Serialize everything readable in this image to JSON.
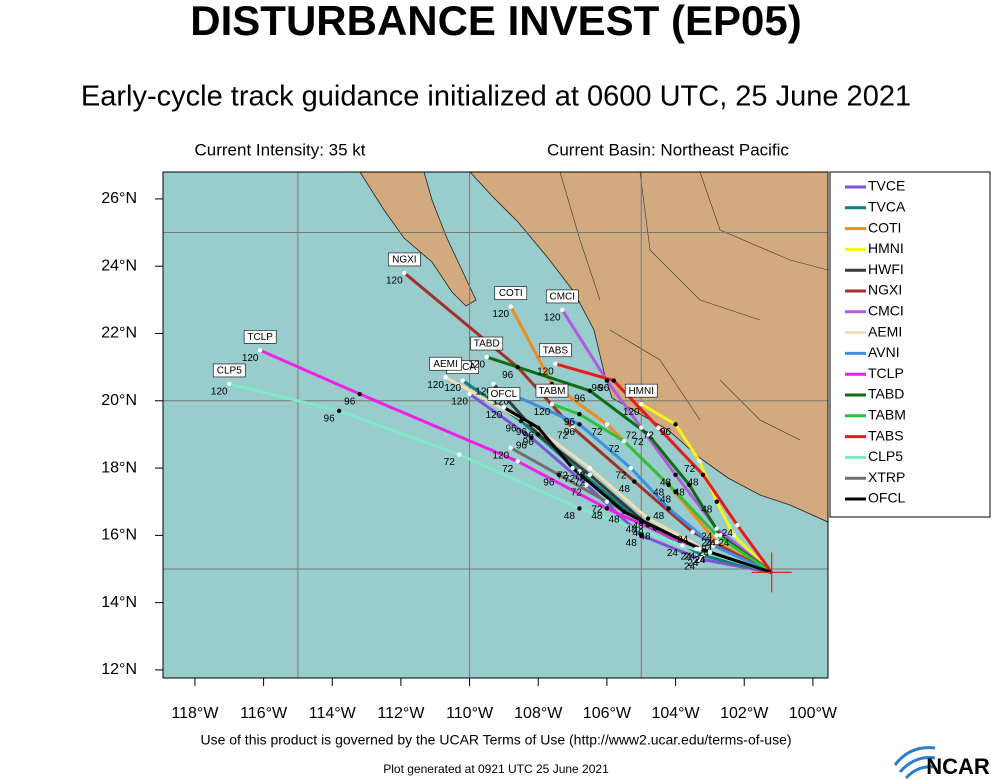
{
  "chart_data": {
    "type": "track",
    "title": "DISTURBANCE INVEST (EP05)",
    "subtitle": "Early-cycle track guidance initialized at 0600 UTC, 25 June 2021",
    "intensity": "Current Intensity: 35 kt",
    "basin": "Current Basin: Northeast Pacific",
    "xlim": [
      -118.93,
      -99.56
    ],
    "ylim": [
      11.76,
      26.8
    ],
    "xticks": [
      {
        "value": -118,
        "label": "118°W"
      },
      {
        "value": -116,
        "label": "116°W"
      },
      {
        "value": -114,
        "label": "114°W"
      },
      {
        "value": -112,
        "label": "112°W"
      },
      {
        "value": -110,
        "label": "110°W"
      },
      {
        "value": -108,
        "label": "108°W"
      },
      {
        "value": -106,
        "label": "106°W"
      },
      {
        "value": -104,
        "label": "104°W"
      },
      {
        "value": -102,
        "label": "102°W"
      },
      {
        "value": -100,
        "label": "100°W"
      }
    ],
    "yticks": [
      {
        "value": 12,
        "label": "12°N"
      },
      {
        "value": 14,
        "label": "14°N"
      },
      {
        "value": 16,
        "label": "16°N"
      },
      {
        "value": 18,
        "label": "18°N"
      },
      {
        "value": 20,
        "label": "20°N"
      },
      {
        "value": 22,
        "label": "22°N"
      },
      {
        "value": 24,
        "label": "24°N"
      },
      {
        "value": 26,
        "label": "26°N"
      }
    ],
    "grid_lon": [
      -115,
      -110,
      -105
    ],
    "grid_lat": [
      15,
      20,
      25
    ],
    "hours": [
      24,
      48,
      72,
      96,
      120
    ],
    "series": [
      {
        "name": "TVCE",
        "color": "#7b55d6",
        "label_box": false,
        "lon": [
          -101.2,
          -103.3,
          -105.0,
          -106.6,
          -108.2,
          -110.0
        ],
        "lat": [
          14.9,
          15.3,
          16.0,
          17.5,
          18.9,
          20.2
        ]
      },
      {
        "name": "TVCA",
        "color": "#0f7f7a",
        "label_box": true,
        "lon": [
          -101.2,
          -103.2,
          -105.0,
          -106.8,
          -108.5,
          -110.2
        ],
        "lat": [
          14.9,
          15.4,
          16.4,
          17.9,
          19.4,
          20.6
        ]
      },
      {
        "name": "COTI",
        "color": "#f08c1a",
        "label_box": true,
        "lon": [
          -101.2,
          -102.8,
          -104.2,
          -106.0,
          -107.6,
          -108.8
        ],
        "lat": [
          14.9,
          15.8,
          17.5,
          19.3,
          20.5,
          22.8
        ]
      },
      {
        "name": "HMNI",
        "color": "#f5f51a",
        "label_box": true,
        "lon": [
          -101.2,
          -102.3,
          -102.8,
          -103.3,
          -104.0,
          -105.0
        ],
        "lat": [
          14.9,
          16.0,
          17.0,
          18.2,
          19.3,
          19.9
        ]
      },
      {
        "name": "HWFI",
        "color": "#3a3a3a",
        "label_box": false,
        "lon": [
          -101.2,
          -103.0,
          -104.8,
          -106.5,
          -108.0,
          -109.3
        ],
        "lat": [
          14.9,
          15.5,
          16.3,
          17.8,
          19.0,
          20.5
        ]
      },
      {
        "name": "NGXI",
        "color": "#a0322a",
        "label_box": true,
        "lon": [
          -101.2,
          -103.5,
          -105.2,
          -107.0,
          -108.6,
          -111.9
        ],
        "lat": [
          14.9,
          16.1,
          17.6,
          19.2,
          21.0,
          23.8
        ]
      },
      {
        "name": "CMCI",
        "color": "#b05ae0",
        "label_box": true,
        "lon": [
          -101.2,
          -102.8,
          -104.0,
          -105.0,
          -106.0,
          -107.3
        ],
        "lat": [
          14.9,
          16.2,
          17.8,
          19.2,
          20.6,
          22.7
        ]
      },
      {
        "name": "AEMI",
        "color": "#f5dcb4",
        "label_box": true,
        "lon": [
          -101.2,
          -103.0,
          -104.8,
          -106.5,
          -108.2,
          -110.7
        ],
        "lat": [
          14.9,
          15.5,
          16.5,
          18.0,
          19.3,
          20.7
        ]
      },
      {
        "name": "AVNI",
        "color": "#3d8fe0",
        "label_box": false,
        "lon": [
          -101.2,
          -102.9,
          -104.2,
          -105.3,
          -106.8,
          -108.8
        ],
        "lat": [
          14.9,
          15.7,
          16.8,
          18.0,
          19.3,
          20.2
        ]
      },
      {
        "name": "TCLP",
        "color": "#f01ee6",
        "label_box": true,
        "lon": [
          -101.2,
          -103.4,
          -106.0,
          -108.6,
          -113.2,
          -116.1
        ],
        "lat": [
          14.9,
          15.6,
          16.8,
          18.2,
          20.2,
          21.5
        ]
      },
      {
        "name": "TABD",
        "color": "#0b6e10",
        "label_box": true,
        "lon": [
          -101.2,
          -102.7,
          -103.6,
          -104.8,
          -106.5,
          -109.5
        ],
        "lat": [
          14.9,
          16.0,
          17.5,
          19.0,
          20.3,
          21.3
        ]
      },
      {
        "name": "TABM",
        "color": "#2fbf3a",
        "label_box": true,
        "lon": [
          -101.2,
          -102.8,
          -104.0,
          -105.5,
          -106.8,
          -107.6
        ],
        "lat": [
          14.9,
          16.0,
          17.3,
          18.8,
          19.6,
          19.9
        ]
      },
      {
        "name": "TABS",
        "color": "#e51a1a",
        "label_box": true,
        "lon": [
          -101.2,
          -102.2,
          -103.2,
          -104.5,
          -105.8,
          -107.5
        ],
        "lat": [
          14.9,
          16.3,
          17.8,
          19.2,
          20.6,
          21.1
        ]
      },
      {
        "name": "CLP5",
        "color": "#7fe8c8",
        "label_box": true,
        "lon": [
          -101.2,
          -103.8,
          -106.8,
          -110.3,
          -113.8,
          -117.0
        ],
        "lat": [
          14.9,
          15.7,
          16.8,
          18.4,
          19.7,
          20.5
        ]
      },
      {
        "name": "XTRP",
        "color": "#707070",
        "label_box": false,
        "lon": [
          -101.2,
          -103.0,
          -104.6,
          -106.0,
          -107.4,
          -108.8
        ],
        "lat": [
          14.9,
          15.5,
          16.2,
          17.0,
          17.8,
          18.6
        ]
      },
      {
        "name": "OFCL",
        "color": "#000000",
        "label_box": true,
        "lon": [
          -101.2,
          -103.3,
          -105.5,
          -107.0,
          -108.0,
          -109.0
        ],
        "lat": [
          14.9,
          15.6,
          16.7,
          18.0,
          19.2,
          19.8
        ]
      }
    ],
    "terms": "Use of this product is governed by the UCAR Terms of Use (http://www2.ucar.edu/terms-of-use)",
    "generated": "Plot generated at 0921 UTC   25 June 2021",
    "logo": "NCAR"
  }
}
